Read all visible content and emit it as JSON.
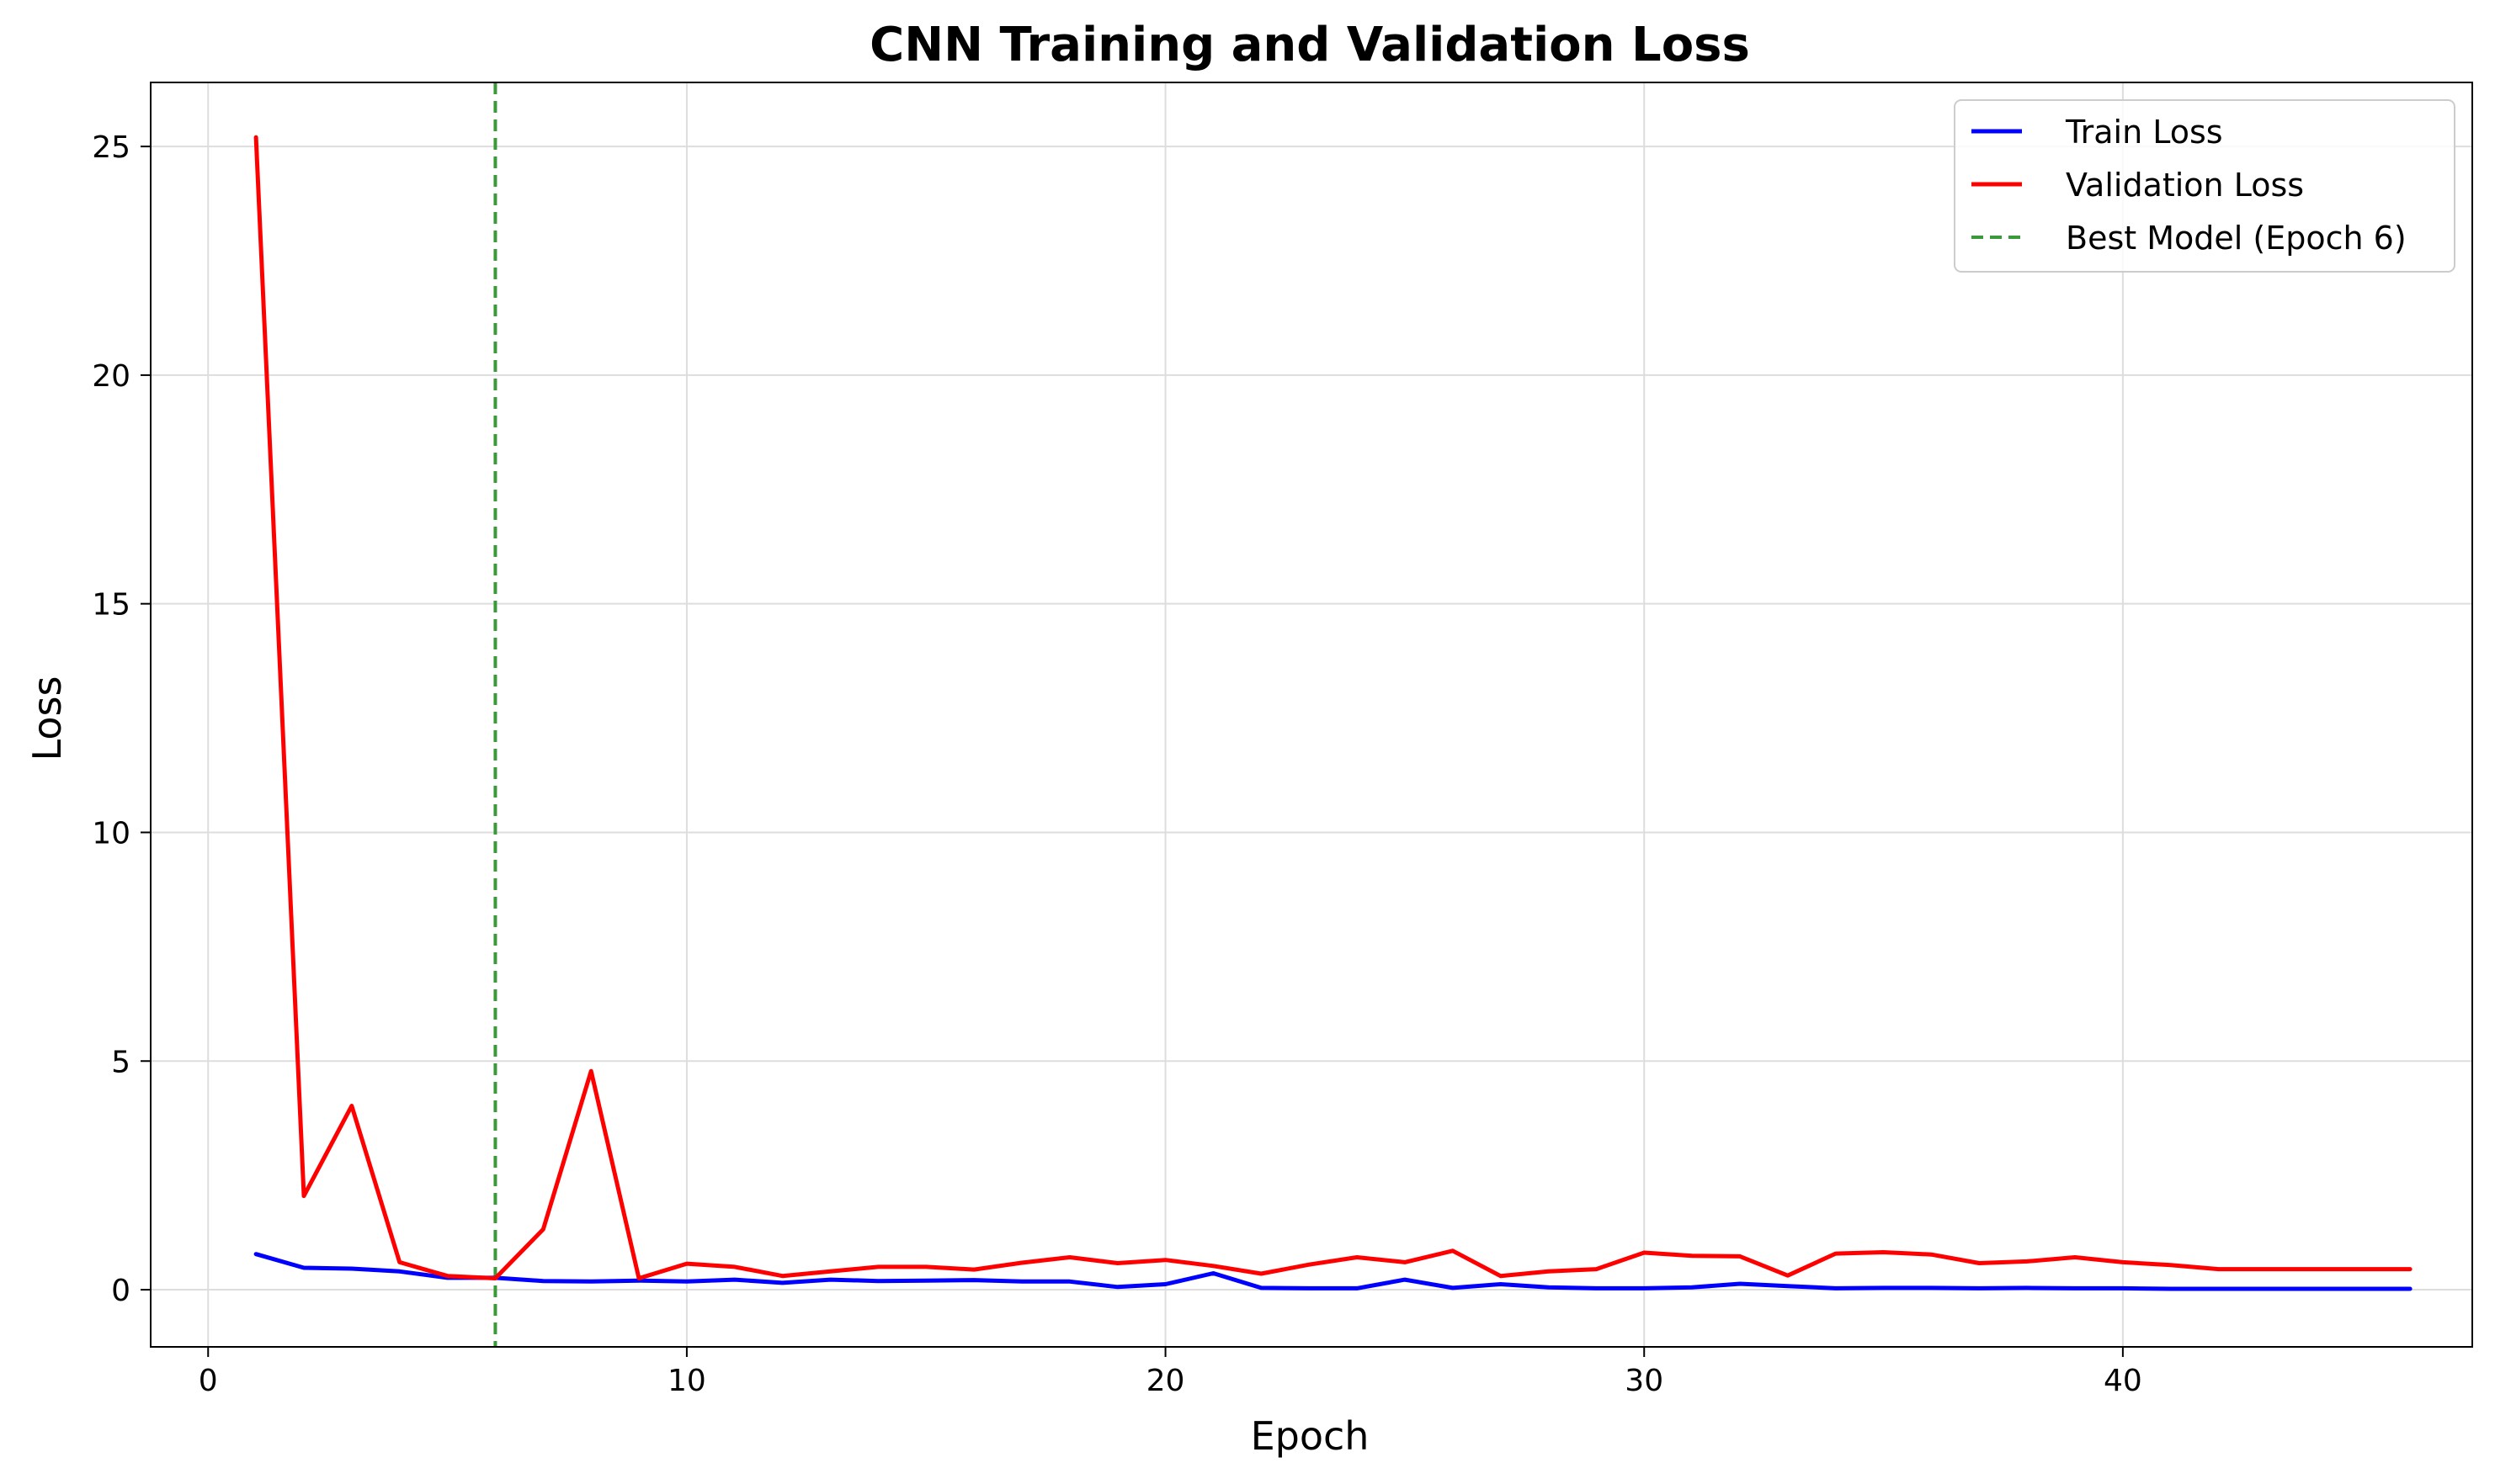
{
  "chart_data": {
    "type": "line",
    "title": "CNN Training and Validation Loss",
    "xlabel": "Epoch",
    "ylabel": "Loss",
    "xlim": [
      -1.2,
      47.3
    ],
    "ylim": [
      -1.25,
      26.4
    ],
    "xticks": [
      0,
      10,
      20,
      30,
      40
    ],
    "yticks": [
      0,
      5,
      10,
      15,
      20,
      25
    ],
    "grid": true,
    "legend_position": "top-right",
    "x": [
      1,
      2,
      3,
      4,
      5,
      6,
      7,
      8,
      9,
      10,
      11,
      12,
      13,
      14,
      15,
      16,
      17,
      18,
      19,
      20,
      21,
      22,
      23,
      24,
      25,
      26,
      27,
      28,
      29,
      30,
      31,
      32,
      33,
      34,
      35,
      36,
      37,
      38,
      39,
      40,
      41,
      42,
      43,
      44,
      45,
      46
    ],
    "series": [
      {
        "name": "Train Loss",
        "color": "#0000ff",
        "values": [
          0.78,
          0.48,
          0.46,
          0.4,
          0.26,
          0.26,
          0.19,
          0.18,
          0.2,
          0.18,
          0.22,
          0.15,
          0.22,
          0.19,
          0.2,
          0.21,
          0.18,
          0.18,
          0.06,
          0.12,
          0.36,
          0.04,
          0.03,
          0.03,
          0.22,
          0.04,
          0.12,
          0.05,
          0.03,
          0.03,
          0.05,
          0.13,
          0.08,
          0.03,
          0.04,
          0.04,
          0.03,
          0.04,
          0.03,
          0.03,
          0.02,
          0.02,
          0.02,
          0.02,
          0.02,
          0.02
        ]
      },
      {
        "name": "Validation Loss",
        "color": "#ff0000",
        "values": [
          25.2,
          2.05,
          4.02,
          0.6,
          0.3,
          0.25,
          1.32,
          4.78,
          0.25,
          0.57,
          0.5,
          0.3,
          0.4,
          0.5,
          0.5,
          0.44,
          0.59,
          0.71,
          0.58,
          0.65,
          0.52,
          0.35,
          0.55,
          0.71,
          0.6,
          0.85,
          0.3,
          0.4,
          0.45,
          0.81,
          0.74,
          0.73,
          0.31,
          0.79,
          0.82,
          0.77,
          0.58,
          0.62,
          0.71,
          0.6,
          0.54,
          0.45,
          0.45,
          0.45,
          0.45,
          0.45
        ]
      }
    ],
    "vline": {
      "name": "Best Model (Epoch 6)",
      "x": 6,
      "color": "#3a9a3a",
      "style": "dashed"
    }
  }
}
